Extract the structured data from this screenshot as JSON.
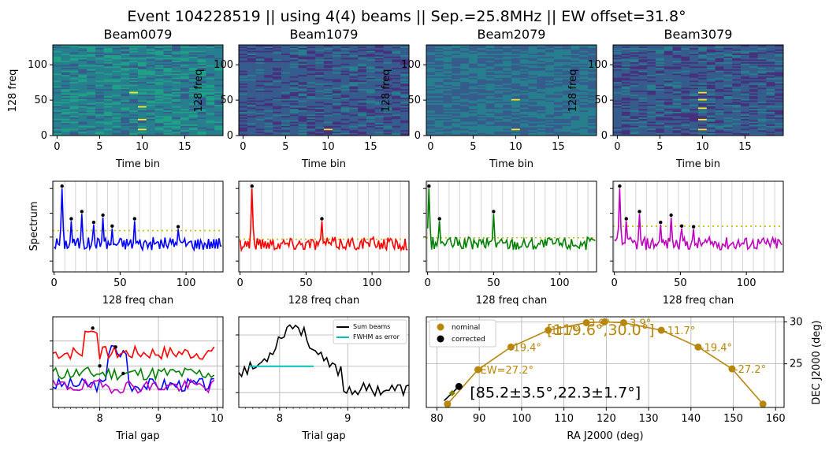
{
  "figure": {
    "suptitle": "Event 104228519 || using 4(4) beams || Sep.=25.8MHz || EW offset=31.8°"
  },
  "colors": {
    "beam_colors": [
      "#0000ff",
      "#ff0000",
      "#008000",
      "#bf00bf"
    ],
    "threshold": "#bfbf00",
    "sum": "#000000",
    "fwhm": "#00bfbf",
    "track": "#b8860b",
    "corrected": "#000000"
  },
  "chart_data": [
    {
      "type": "heatmap",
      "panels": [
        {
          "title": "Beam0079",
          "ylabel": "128 freq",
          "xlabel": "Time bin",
          "xticks": [
            "0",
            "5",
            "10",
            "15"
          ],
          "yticks": [
            "0",
            "50",
            "100"
          ],
          "hot_bins": [
            [
              10,
              8
            ],
            [
              10,
              22
            ],
            [
              10,
              40
            ],
            [
              9,
              60
            ]
          ]
        },
        {
          "title": "Beam1079",
          "ylabel": "128 freq",
          "xlabel": "Time bin",
          "xticks": [
            "0",
            "5",
            "10",
            "15"
          ],
          "yticks": [
            "0",
            "50",
            "100"
          ],
          "hot_bins": [
            [
              10,
              8
            ]
          ]
        },
        {
          "title": "Beam2079",
          "ylabel": "128 freq",
          "xlabel": "Time bin",
          "xticks": [
            "0",
            "5",
            "10",
            "15"
          ],
          "yticks": [
            "0",
            "50",
            "100"
          ],
          "hot_bins": [
            [
              10,
              8
            ],
            [
              10,
              50
            ]
          ]
        },
        {
          "title": "Beam3079",
          "ylabel": "128 freq",
          "xlabel": "Time bin",
          "xticks": [
            "0",
            "5",
            "10",
            "15"
          ],
          "yticks": [
            "0",
            "50",
            "100"
          ],
          "hot_bins": [
            [
              10,
              8
            ],
            [
              10,
              22
            ],
            [
              10,
              38
            ],
            [
              10,
              50
            ],
            [
              10,
              60
            ]
          ]
        }
      ],
      "xlim": [
        -0.5,
        19.5
      ],
      "ylim": [
        0,
        128
      ]
    },
    {
      "type": "line",
      "ylabel": "Spectrum",
      "xlabel": "128 freq chan",
      "xticks": [
        "0",
        "50",
        "100"
      ],
      "xlim": [
        -1,
        128
      ],
      "series": [
        {
          "peaks": [
            6,
            13,
            21,
            30,
            37,
            44,
            61,
            94
          ],
          "threshold": 0.42
        },
        {
          "peaks": [
            9,
            62
          ],
          "threshold": 0.3
        },
        {
          "peaks": [
            1,
            9,
            50
          ],
          "threshold": 0.32
        },
        {
          "peaks": [
            4,
            9,
            19,
            35,
            43,
            51,
            60
          ],
          "threshold": 0.48
        }
      ]
    },
    {
      "type": "line",
      "xlabel": "Trial gap",
      "xticks": [
        "8",
        "9",
        "10"
      ],
      "xlim": [
        7.2,
        10.1
      ]
    },
    {
      "type": "line",
      "xlabel": "Trial gap",
      "xticks": [
        "8",
        "9"
      ],
      "xlim": [
        7.4,
        9.9
      ],
      "legend": [
        "Sum beams",
        "FWHM as error"
      ],
      "fwhm": [
        7.55,
        8.5
      ]
    },
    {
      "type": "scatter",
      "xlabel": "RA J2000 (deg)",
      "ylabel": "DEC J2000 (deg)",
      "xticks": [
        "80",
        "90",
        "100",
        "110",
        "120",
        "130",
        "140",
        "150",
        "160"
      ],
      "yticks": [
        "25",
        "30"
      ],
      "xlim": [
        77.5,
        162
      ],
      "ylim": [
        19.8,
        30.6
      ],
      "legend": [
        "nominal",
        "corrected"
      ],
      "nominal_points": [
        {
          "ra": 82.5,
          "dec": 20.2,
          "label": ""
        },
        {
          "ra": 89.7,
          "dec": 24.3,
          "label": "EW=27.2°"
        },
        {
          "ra": 97.5,
          "dec": 27.0,
          "label": "19.4°"
        },
        {
          "ra": 106.3,
          "dec": 29.0,
          "label": "11.7°"
        },
        {
          "ra": 115.3,
          "dec": 29.9,
          "label": "3.9°"
        },
        {
          "ra": 119.6,
          "dec": 30.0,
          "label": ""
        },
        {
          "ra": 124.1,
          "dec": 29.9,
          "label": "-3.9°"
        },
        {
          "ra": 133.0,
          "dec": 29.0,
          "label": "-11.7°"
        },
        {
          "ra": 141.7,
          "dec": 27.0,
          "label": "-19.4°"
        },
        {
          "ra": 149.7,
          "dec": 24.4,
          "label": "-27.2°"
        },
        {
          "ra": 157.0,
          "dec": 20.2,
          "label": ""
        }
      ],
      "corrected_point": {
        "ra": 85.2,
        "dec": 22.3
      },
      "annotation_nominal": "[119.6°,30.0°]",
      "annotation_corrected": "[85.2±3.5°,22.3±1.7°]"
    }
  ]
}
